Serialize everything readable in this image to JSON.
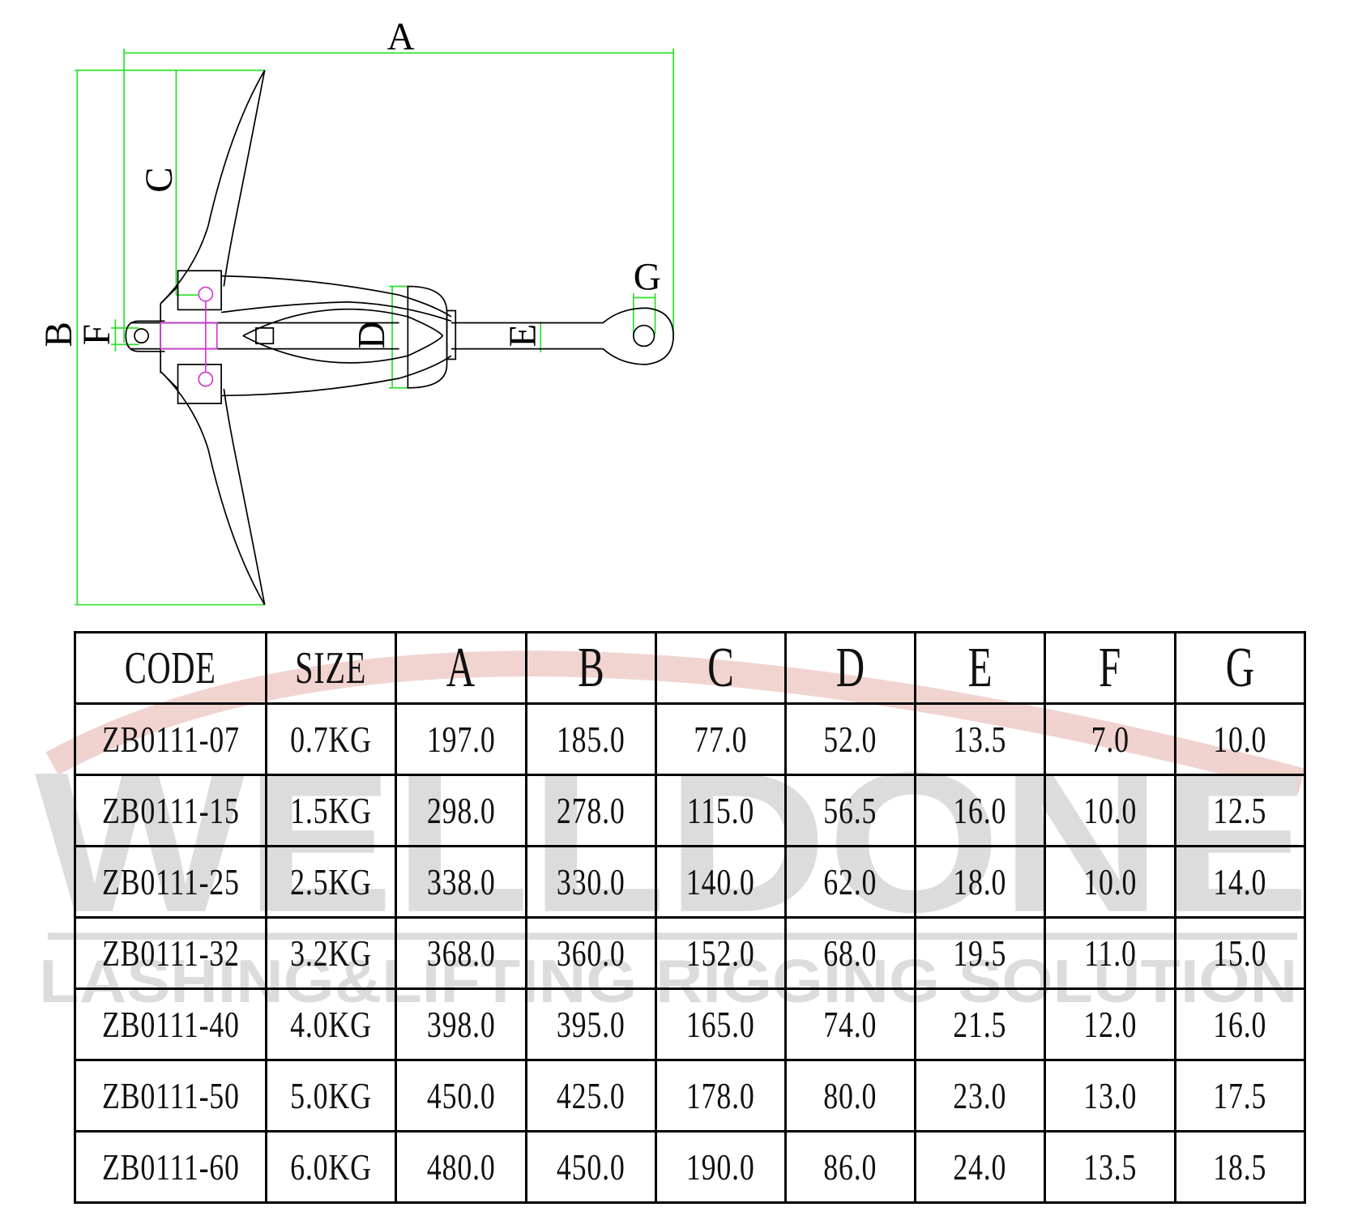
{
  "drawing": {
    "dimension_labels": {
      "A": "A",
      "B": "B",
      "C": "C",
      "D": "D",
      "E": "E",
      "F": "F",
      "G": "G"
    },
    "colors": {
      "dimension_lines": "#2ee02e",
      "outline": "#000000",
      "pins": "#d23ad2"
    }
  },
  "watermark": {
    "brand": "WELLDONE",
    "tagline": "LASHING&LIFTING RIGGING SOLUTION",
    "colors": {
      "text": "#8a8a8a",
      "arc": "#c0392b"
    }
  },
  "table": {
    "headers": [
      "CODE",
      "SIZE",
      "A",
      "B",
      "C",
      "D",
      "E",
      "F",
      "G"
    ],
    "rows": [
      [
        "ZB0111-07",
        "0.7KG",
        "197.0",
        "185.0",
        "77.0",
        "52.0",
        "13.5",
        "7.0",
        "10.0"
      ],
      [
        "ZB0111-15",
        "1.5KG",
        "298.0",
        "278.0",
        "115.0",
        "56.5",
        "16.0",
        "10.0",
        "12.5"
      ],
      [
        "ZB0111-25",
        "2.5KG",
        "338.0",
        "330.0",
        "140.0",
        "62.0",
        "18.0",
        "10.0",
        "14.0"
      ],
      [
        "ZB0111-32",
        "3.2KG",
        "368.0",
        "360.0",
        "152.0",
        "68.0",
        "19.5",
        "11.0",
        "15.0"
      ],
      [
        "ZB0111-40",
        "4.0KG",
        "398.0",
        "395.0",
        "165.0",
        "74.0",
        "21.5",
        "12.0",
        "16.0"
      ],
      [
        "ZB0111-50",
        "5.0KG",
        "450.0",
        "425.0",
        "178.0",
        "80.0",
        "23.0",
        "13.0",
        "17.5"
      ],
      [
        "ZB0111-60",
        "6.0KG",
        "480.0",
        "450.0",
        "190.0",
        "86.0",
        "24.0",
        "13.5",
        "18.5"
      ]
    ]
  }
}
